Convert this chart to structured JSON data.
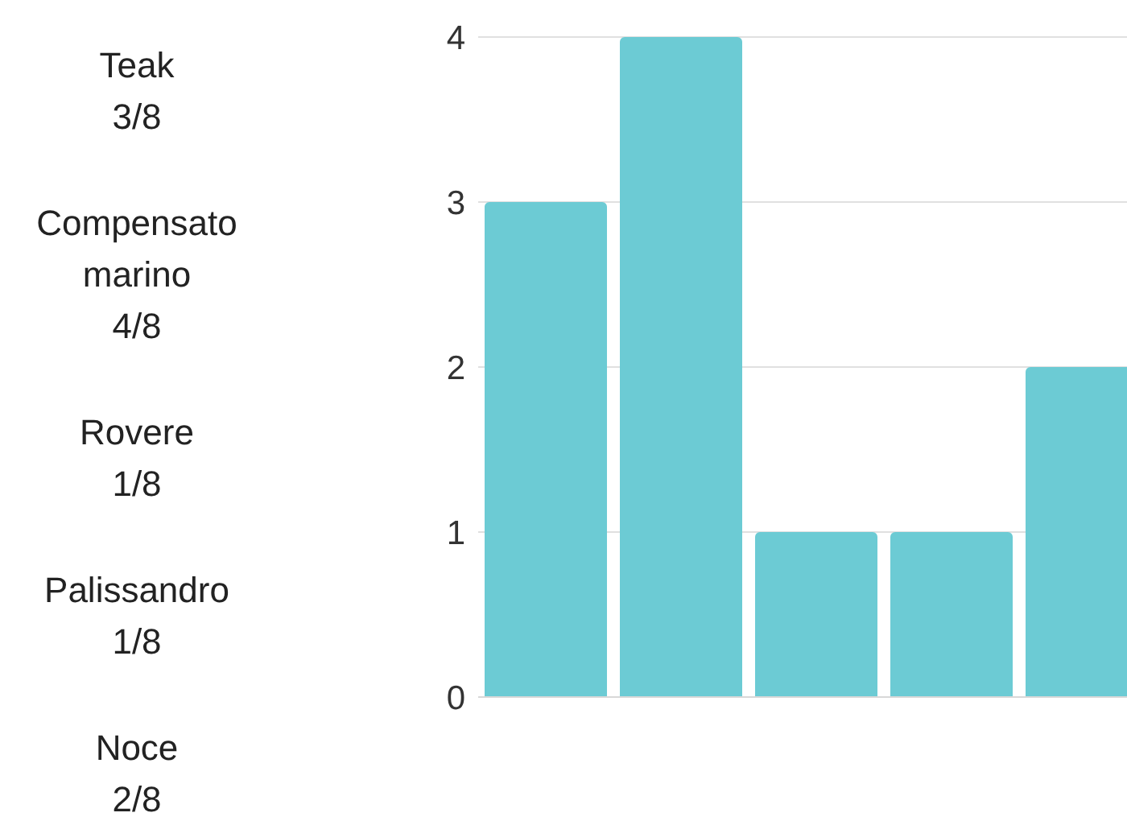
{
  "chart_data": {
    "type": "bar",
    "categories": [
      null,
      null,
      null,
      null,
      null
    ],
    "values": [
      3,
      4,
      1,
      1,
      2
    ],
    "color": "#6ccbd4",
    "ylim": [
      0,
      4
    ],
    "yticks": [
      0,
      1,
      2,
      3,
      4
    ],
    "grid": "y",
    "annotations": [
      "Teak",
      "3/8",
      "Compensato marino",
      "4/8",
      "Rovere",
      "1/8",
      "Palissandro",
      "1/8",
      "Noce",
      "2/8"
    ]
  }
}
